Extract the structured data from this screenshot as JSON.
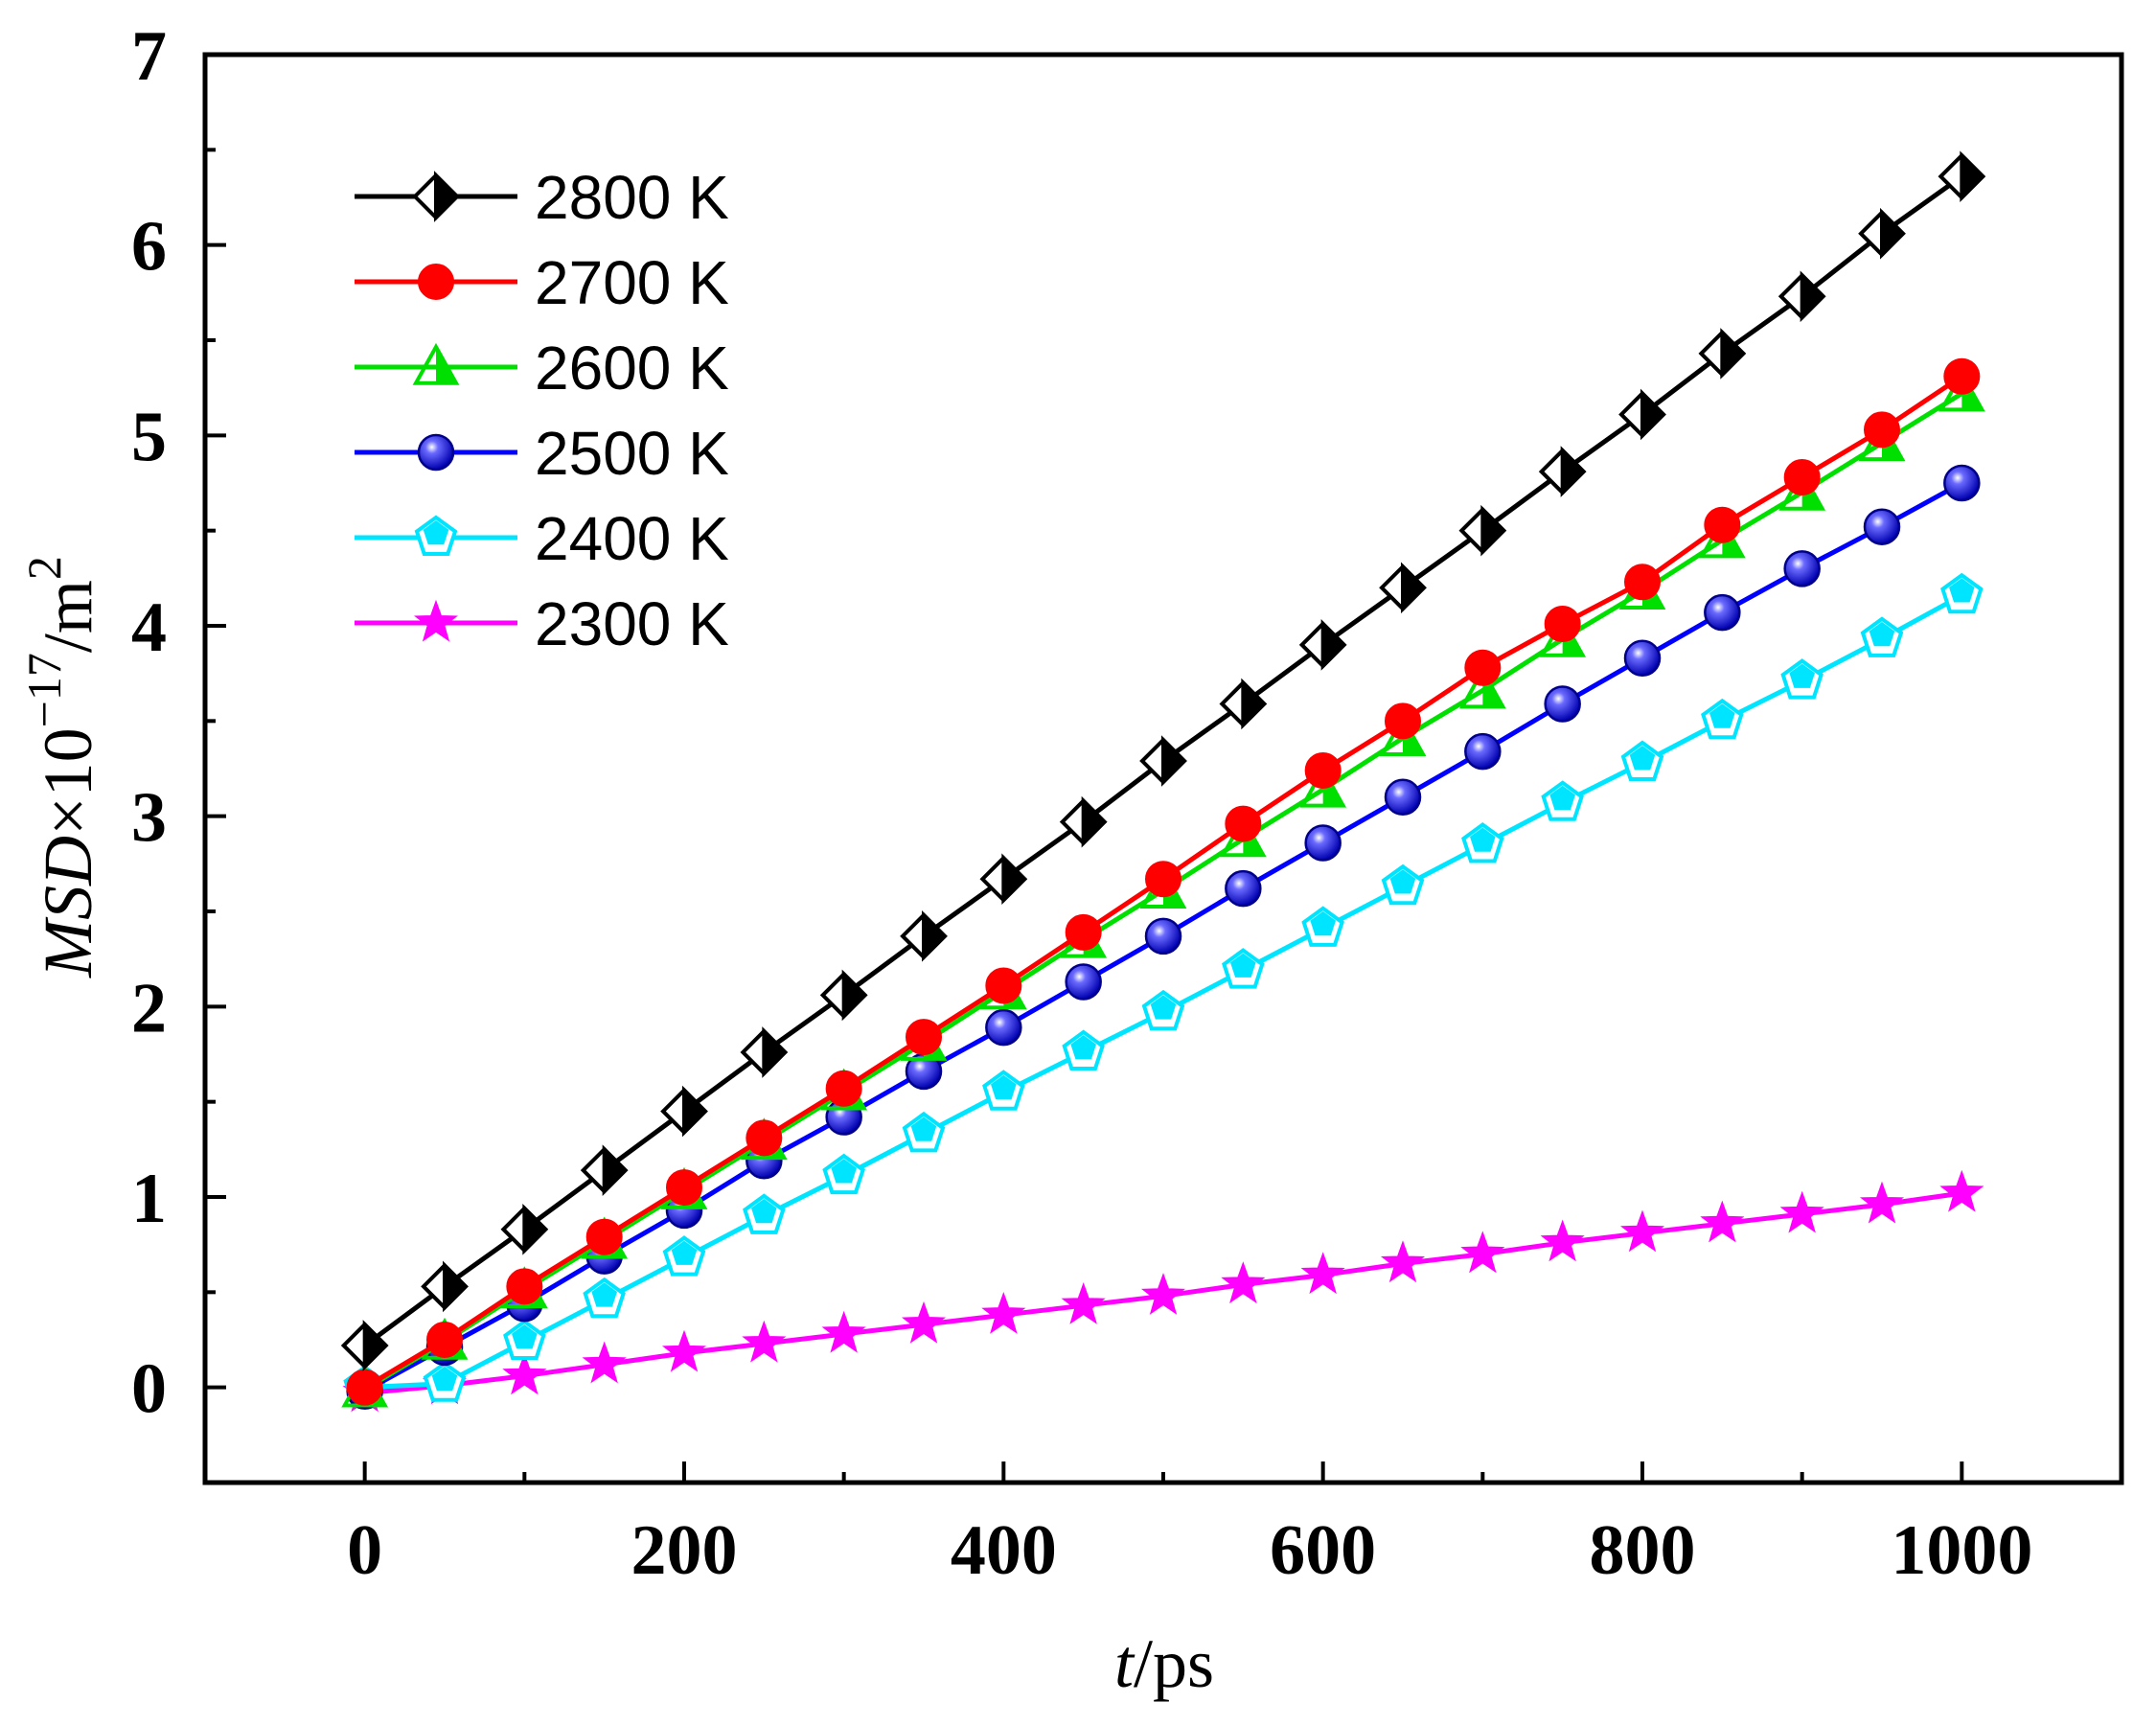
{
  "chart_data": {
    "type": "line",
    "title": "",
    "xlabel": {
      "italic": "t",
      "rest": "/ps"
    },
    "ylabel": {
      "italic": "MSD",
      "mult": "×10",
      "exp": "−17",
      "unit": "/m",
      "unit_exp": "2"
    },
    "xlim": [
      -100,
      1100
    ],
    "ylim": [
      -0.5,
      7
    ],
    "xticks": [
      0,
      200,
      400,
      600,
      800,
      1000
    ],
    "yticks": [
      0,
      1,
      2,
      3,
      4,
      5,
      6,
      7
    ],
    "legend_position": "top-left",
    "x": [
      0,
      50,
      100,
      150,
      200,
      250,
      300,
      350,
      400,
      450,
      500,
      550,
      600,
      650,
      700,
      750,
      800,
      850,
      900,
      950,
      1000
    ],
    "series": [
      {
        "name": "2800 K",
        "color": "#000000",
        "marker": "diamond-half",
        "values": [
          0.22,
          0.53,
          0.83,
          1.14,
          1.45,
          1.76,
          2.06,
          2.37,
          2.67,
          2.97,
          3.29,
          3.59,
          3.9,
          4.2,
          4.5,
          4.81,
          5.11,
          5.43,
          5.73,
          6.06,
          6.36
        ]
      },
      {
        "name": "2700 K",
        "color": "#ff0000",
        "marker": "circle",
        "values": [
          0.0,
          0.25,
          0.53,
          0.79,
          1.05,
          1.31,
          1.57,
          1.84,
          2.11,
          2.39,
          2.67,
          2.96,
          3.24,
          3.5,
          3.78,
          4.01,
          4.23,
          4.53,
          4.78,
          5.03,
          5.31
        ]
      },
      {
        "name": "2600 K",
        "color": "#00e000",
        "marker": "triangle",
        "values": [
          -0.01,
          0.24,
          0.51,
          0.77,
          1.03,
          1.29,
          1.55,
          1.81,
          2.08,
          2.35,
          2.61,
          2.88,
          3.14,
          3.41,
          3.66,
          3.93,
          4.18,
          4.45,
          4.7,
          4.96,
          5.22
        ]
      },
      {
        "name": "2500 K",
        "color": "#0000ff",
        "marker": "sphere",
        "values": [
          -0.02,
          0.21,
          0.44,
          0.69,
          0.93,
          1.19,
          1.42,
          1.66,
          1.89,
          2.13,
          2.37,
          2.62,
          2.86,
          3.1,
          3.34,
          3.59,
          3.83,
          4.07,
          4.3,
          4.52,
          4.75
        ]
      },
      {
        "name": "2400 K",
        "color": "#00e5ff",
        "marker": "pentagon",
        "values": [
          0.0,
          0.02,
          0.24,
          0.46,
          0.68,
          0.9,
          1.11,
          1.33,
          1.55,
          1.76,
          1.97,
          2.19,
          2.41,
          2.63,
          2.85,
          3.07,
          3.28,
          3.5,
          3.71,
          3.93,
          4.16
        ]
      },
      {
        "name": "2300 K",
        "color": "#ff00ff",
        "marker": "star",
        "values": [
          -0.03,
          0.01,
          0.06,
          0.12,
          0.18,
          0.23,
          0.28,
          0.33,
          0.38,
          0.43,
          0.48,
          0.54,
          0.59,
          0.65,
          0.7,
          0.76,
          0.81,
          0.86,
          0.91,
          0.96,
          1.02
        ]
      }
    ]
  }
}
